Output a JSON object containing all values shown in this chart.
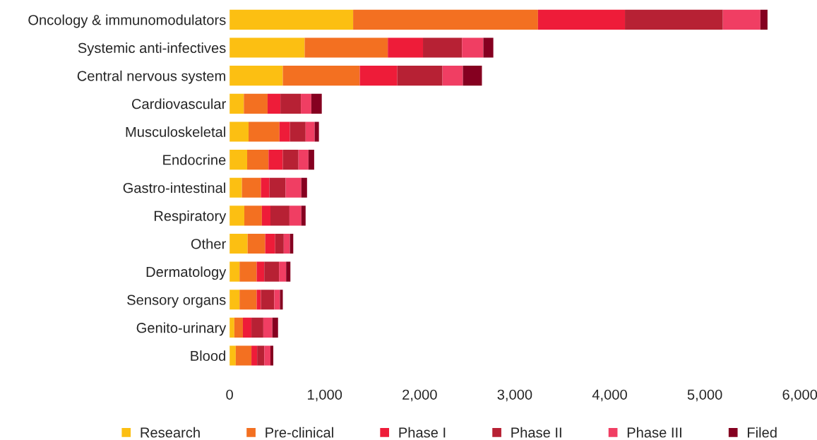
{
  "chart_data": {
    "type": "bar",
    "orientation": "horizontal",
    "stacked": true,
    "categories": [
      "Oncology & immunomodulators",
      "Systemic anti-infectives",
      "Central nervous system",
      "Cardiovascular",
      "Musculoskeletal",
      "Endocrine",
      "Gastro-intestinal",
      "Respiratory",
      "Other",
      "Dermatology",
      "Sensory organs",
      "Genito-urinary",
      "Blood"
    ],
    "series": [
      {
        "name": "Research",
        "color": "#fcbf12",
        "values": [
          1300,
          790,
          560,
          150,
          200,
          185,
          130,
          155,
          190,
          105,
          105,
          50,
          65
        ]
      },
      {
        "name": "Pre-clinical",
        "color": "#f37021",
        "values": [
          1945,
          875,
          810,
          250,
          325,
          225,
          200,
          185,
          185,
          180,
          180,
          90,
          165
        ]
      },
      {
        "name": "Phase I",
        "color": "#ee1c39",
        "values": [
          915,
          370,
          395,
          135,
          110,
          150,
          90,
          90,
          105,
          80,
          45,
          90,
          60
        ]
      },
      {
        "name": "Phase II",
        "color": "#b72134",
        "values": [
          1030,
          410,
          475,
          215,
          165,
          165,
          170,
          200,
          90,
          155,
          140,
          125,
          75
        ]
      },
      {
        "name": "Phase III",
        "color": "#f03e63",
        "values": [
          395,
          225,
          215,
          110,
          95,
          105,
          165,
          125,
          65,
          75,
          60,
          95,
          65
        ]
      },
      {
        "name": "Filed",
        "color": "#850020",
        "values": [
          75,
          105,
          200,
          110,
          45,
          60,
          60,
          45,
          35,
          45,
          30,
          60,
          30
        ]
      }
    ],
    "xlim": [
      0,
      6000
    ],
    "xticks": [
      {
        "value": 0,
        "label": "0"
      },
      {
        "value": 1000,
        "label": "1,000"
      },
      {
        "value": 2000,
        "label": "2,000"
      },
      {
        "value": 3000,
        "label": "3,000"
      },
      {
        "value": 4000,
        "label": "4,000"
      },
      {
        "value": 5000,
        "label": "5,000"
      },
      {
        "value": 6000,
        "label": "6,000"
      }
    ],
    "grid": false,
    "legend": "bottom"
  }
}
